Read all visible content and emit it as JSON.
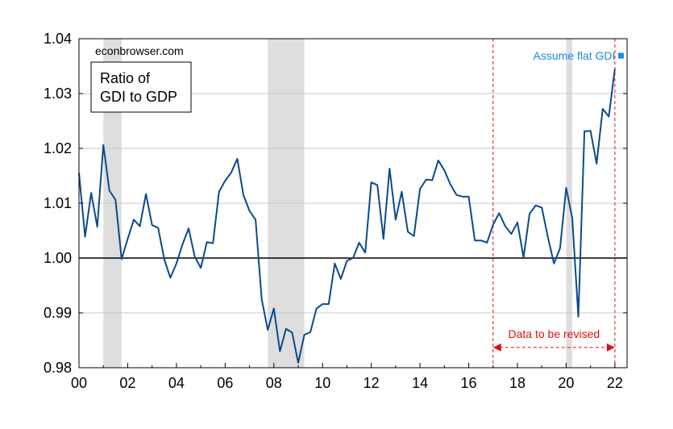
{
  "chart_data": {
    "type": "line",
    "source_label": "econbrowser.com",
    "title_line1": "Ratio of",
    "title_line2": "GDI to GDP",
    "xlim": [
      2000.0,
      2022.5
    ],
    "ylim": [
      0.98,
      1.04
    ],
    "x_ticks": [
      2000,
      2002,
      2004,
      2006,
      2008,
      2010,
      2012,
      2014,
      2016,
      2018,
      2020,
      2022
    ],
    "x_tick_labels": [
      "00",
      "02",
      "04",
      "06",
      "08",
      "10",
      "12",
      "14",
      "16",
      "18",
      "20",
      "22"
    ],
    "y_ticks": [
      0.98,
      0.99,
      1.0,
      1.01,
      1.02,
      1.03,
      1.04
    ],
    "y_tick_labels": [
      "0.98",
      "0.99",
      "1.00",
      "1.01",
      "1.02",
      "1.03",
      "1.04"
    ],
    "grid": true,
    "reference_line": 1.0,
    "recessions": [
      [
        2001.0,
        2001.75
      ],
      [
        2007.75,
        2009.25
      ],
      [
        2020.0,
        2020.25
      ]
    ],
    "series": [
      {
        "color": "#0c4a8c",
        "x_start": 2000.0,
        "step": 0.25,
        "values": [
          1.0155,
          1.0039,
          1.0119,
          1.0057,
          1.0206,
          1.0123,
          1.0106,
          0.9998,
          1.0035,
          1.007,
          1.0058,
          1.0117,
          1.006,
          1.0055,
          0.9998,
          0.9964,
          0.999,
          1.0025,
          1.0054,
          1.0003,
          0.9982,
          1.0029,
          1.0027,
          1.0121,
          1.0141,
          1.0156,
          1.0181,
          1.0115,
          1.0086,
          1.007,
          0.9925,
          0.9869,
          0.9908,
          0.983,
          0.9871,
          0.9864,
          0.9809,
          0.986,
          0.9865,
          0.9908,
          0.9916,
          0.9916,
          0.999,
          0.9962,
          0.9995,
          1.0,
          1.0028,
          1.001,
          1.0138,
          1.0133,
          1.0035,
          1.0163,
          1.007,
          1.0121,
          1.0048,
          1.004,
          1.0126,
          1.0143,
          1.0142,
          1.0178,
          1.016,
          1.0134,
          1.0115,
          1.0112,
          1.0112,
          1.0032,
          1.0032,
          1.0028,
          1.0061,
          1.0082,
          1.0058,
          1.0044,
          1.0065,
          1.0001,
          1.0081,
          1.0096,
          1.0092,
          1.0038,
          0.999,
          1.0018,
          1.0128,
          1.0073,
          0.9893,
          1.0231,
          1.0232,
          1.0172,
          1.0272,
          1.0258,
          1.0345
        ]
      }
    ],
    "flat_gdi_point": {
      "x": 2022.25,
      "y": 1.0369,
      "color": "#1e88e5"
    },
    "flat_gdi_label": "Assume flat GDI",
    "revision_lines": [
      2017.0,
      2022.0
    ],
    "revision_label": "Data to be revised",
    "revision_arrow_y": 0.9837,
    "revision_color": "#e01010"
  }
}
